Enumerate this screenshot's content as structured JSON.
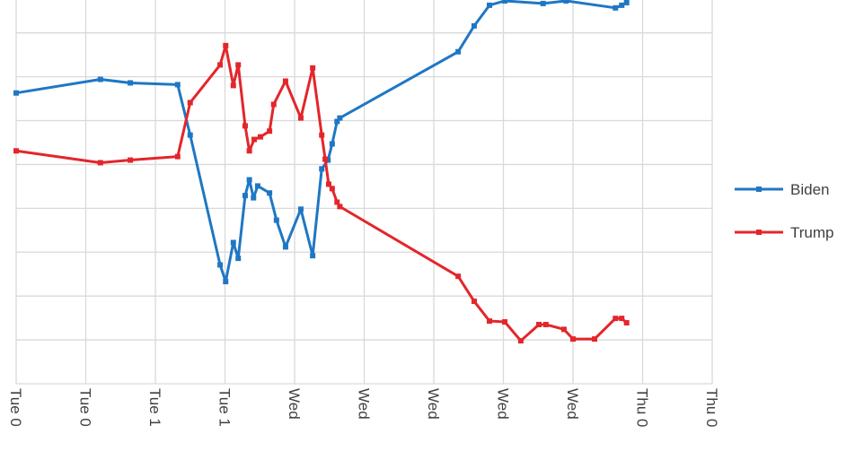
{
  "chart_data": {
    "type": "line",
    "xlim": [
      0,
      10
    ],
    "xticks": [
      {
        "value": 0,
        "label": "Tue 0"
      },
      {
        "value": 1,
        "label": "Tue 0"
      },
      {
        "value": 2,
        "label": "Tue 1"
      },
      {
        "value": 3,
        "label": "Tue 1"
      },
      {
        "value": 4,
        "label": "Wed"
      },
      {
        "value": 5,
        "label": "Wed"
      },
      {
        "value": 6,
        "label": "Wed"
      },
      {
        "value": 7,
        "label": "Wed"
      },
      {
        "value": 8,
        "label": "Wed"
      },
      {
        "value": 9,
        "label": "Thu 0"
      },
      {
        "value": 10,
        "label": "Thu 0"
      }
    ],
    "ylim": [
      0,
      8.75
    ],
    "yticks": [
      0,
      1,
      2,
      3,
      4,
      5,
      6,
      7,
      8
    ],
    "grid": true,
    "legend": "right",
    "series": [
      {
        "name": "Biden",
        "color": "#1f77c4",
        "x": [
          0,
          1.21,
          1.64,
          2.32,
          2.5,
          2.93,
          3.01,
          3.12,
          3.19,
          3.29,
          3.35,
          3.41,
          3.47,
          3.64,
          3.74,
          3.87,
          4.09,
          4.26,
          4.39,
          4.48,
          4.54,
          4.61,
          4.65,
          6.35,
          6.58,
          6.8,
          7.02,
          7.57,
          7.9,
          8.61,
          8.7,
          8.77
        ],
        "values": [
          6.63,
          6.94,
          6.86,
          6.82,
          5.67,
          2.71,
          2.33,
          3.22,
          2.86,
          4.29,
          4.65,
          4.24,
          4.51,
          4.35,
          3.73,
          3.12,
          3.98,
          2.92,
          4.9,
          5.1,
          5.47,
          5.98,
          6.06,
          7.57,
          8.16,
          8.63,
          8.73,
          8.67,
          8.73,
          8.57,
          8.63,
          8.69
        ]
      },
      {
        "name": "Trump",
        "color": "#e3262b",
        "x": [
          0,
          1.21,
          1.64,
          2.32,
          2.5,
          2.93,
          3.01,
          3.12,
          3.19,
          3.29,
          3.35,
          3.42,
          3.51,
          3.64,
          3.7,
          3.87,
          4.09,
          4.26,
          4.39,
          4.44,
          4.49,
          4.54,
          4.61,
          4.65,
          6.35,
          6.58,
          6.8,
          7.02,
          7.25,
          7.51,
          7.61,
          7.87,
          8.0,
          8.31,
          8.61,
          8.7,
          8.77
        ],
        "values": [
          5.31,
          5.04,
          5.1,
          5.18,
          6.41,
          7.27,
          7.71,
          6.8,
          7.27,
          5.88,
          5.31,
          5.57,
          5.63,
          5.76,
          6.37,
          6.9,
          6.06,
          7.2,
          5.67,
          5.12,
          4.55,
          4.45,
          4.14,
          4.04,
          2.45,
          1.88,
          1.43,
          1.41,
          0.98,
          1.35,
          1.35,
          1.24,
          1.02,
          1.02,
          1.49,
          1.49,
          1.39
        ]
      }
    ]
  }
}
